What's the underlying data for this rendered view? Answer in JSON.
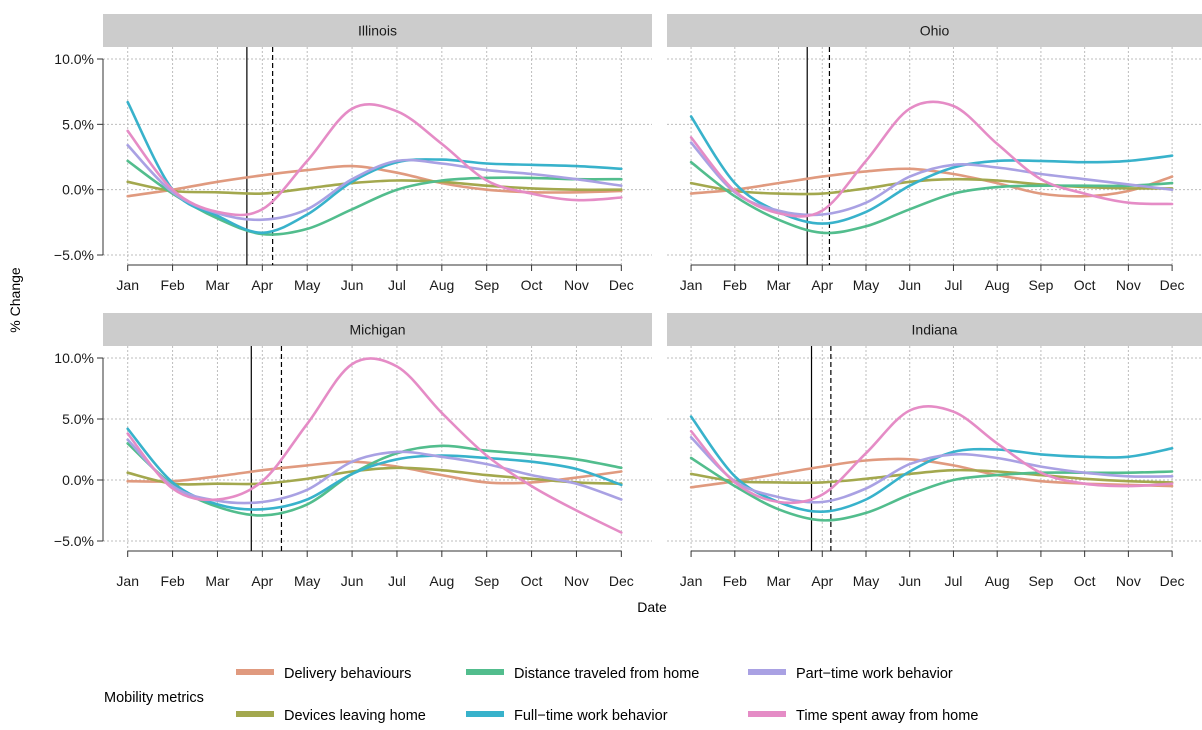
{
  "chart_data": {
    "type": "line",
    "xlabel": "Date",
    "ylabel": "% Change",
    "ylim": [
      -5,
      10
    ],
    "y_ticks": [
      -5,
      0,
      5,
      10
    ],
    "y_tick_labels": [
      "−5.0%",
      "0.0%",
      "5.0%",
      "10.0%"
    ],
    "month_labels": [
      "Jan",
      "Feb",
      "Mar",
      "Apr",
      "May",
      "Jun",
      "Jul",
      "Aug",
      "Sep",
      "Oct",
      "Nov",
      "Dec"
    ],
    "grid": true,
    "legend": {
      "title": "Mobility metrics",
      "position": "bottom",
      "entries": [
        {
          "name": "Delivery behaviours",
          "color": "#e09a7f"
        },
        {
          "name": "Devices leaving home",
          "color": "#a3a84e"
        },
        {
          "name": "Distance traveled from home",
          "color": "#52bd8d"
        },
        {
          "name": "Full−time work behavior",
          "color": "#38b2cb"
        },
        {
          "name": "Part−time work behavior",
          "color": "#a9a1e3"
        },
        {
          "name": "Time spent away from home",
          "color": "#e58cc6"
        }
      ]
    },
    "x": [
      "Jan",
      "Feb",
      "Mar",
      "Apr",
      "May",
      "Jun",
      "Jul",
      "Aug",
      "Sep",
      "Oct",
      "Nov",
      "Dec"
    ],
    "panels": [
      {
        "title": "Illinois",
        "solid_vline": "Mar 21",
        "dashed_vline": "Apr 8",
        "series": [
          {
            "name": "Delivery behaviours",
            "values": [
              -0.5,
              0.0,
              0.6,
              1.1,
              1.5,
              1.8,
              1.3,
              0.5,
              0.0,
              -0.2,
              -0.2,
              -0.1
            ]
          },
          {
            "name": "Devices leaving home",
            "values": [
              0.6,
              -0.1,
              -0.2,
              -0.3,
              0.1,
              0.5,
              0.7,
              0.6,
              0.3,
              0.1,
              0.0,
              0.0
            ]
          },
          {
            "name": "Distance traveled from home",
            "values": [
              2.2,
              -0.3,
              -2.2,
              -3.4,
              -3.0,
              -1.5,
              0.0,
              0.7,
              0.9,
              0.9,
              0.8,
              0.8
            ]
          },
          {
            "name": "Full−time work behavior",
            "values": [
              6.7,
              0.0,
              -2.0,
              -3.3,
              -1.9,
              0.6,
              2.1,
              2.3,
              2.0,
              1.9,
              1.8,
              1.6
            ]
          },
          {
            "name": "Part−time work behavior",
            "values": [
              3.4,
              -0.2,
              -1.8,
              -2.3,
              -1.5,
              0.8,
              2.2,
              2.0,
              1.5,
              1.2,
              0.8,
              0.3
            ]
          },
          {
            "name": "Time spent away from home",
            "values": [
              4.5,
              0.0,
              -1.7,
              -1.5,
              2.2,
              6.2,
              6.0,
              3.5,
              0.7,
              -0.3,
              -0.8,
              -0.6
            ]
          }
        ]
      },
      {
        "title": "Ohio",
        "solid_vline": "Mar 21",
        "dashed_vline": "Apr 6",
        "series": [
          {
            "name": "Delivery behaviours",
            "values": [
              -0.3,
              0.0,
              0.5,
              1.0,
              1.4,
              1.6,
              1.2,
              0.5,
              -0.3,
              -0.5,
              -0.1,
              1.0
            ]
          },
          {
            "name": "Devices leaving home",
            "values": [
              0.5,
              -0.1,
              -0.3,
              -0.3,
              0.1,
              0.6,
              0.8,
              0.7,
              0.4,
              0.2,
              0.1,
              0.1
            ]
          },
          {
            "name": "Distance traveled from home",
            "values": [
              2.1,
              -0.5,
              -2.3,
              -3.3,
              -2.8,
              -1.5,
              -0.3,
              0.2,
              0.3,
              0.3,
              0.3,
              0.5
            ]
          },
          {
            "name": "Full−time work behavior",
            "values": [
              5.6,
              0.5,
              -1.7,
              -2.6,
              -1.7,
              0.3,
              1.7,
              2.2,
              2.2,
              2.1,
              2.2,
              2.6
            ]
          },
          {
            "name": "Part−time work behavior",
            "values": [
              3.6,
              -0.2,
              -1.6,
              -1.9,
              -1.0,
              1.0,
              1.9,
              1.7,
              1.2,
              0.8,
              0.4,
              0.0
            ]
          },
          {
            "name": "Time spent away from home",
            "values": [
              4.0,
              -0.1,
              -1.8,
              -1.6,
              2.2,
              6.2,
              6.4,
              3.5,
              0.8,
              -0.3,
              -1.0,
              -1.1
            ]
          }
        ]
      },
      {
        "title": "Michigan",
        "solid_vline": "Mar 24",
        "dashed_vline": "Apr 14",
        "series": [
          {
            "name": "Delivery behaviours",
            "values": [
              -0.1,
              -0.1,
              0.3,
              0.8,
              1.2,
              1.5,
              1.1,
              0.4,
              -0.2,
              -0.2,
              0.2,
              0.7
            ]
          },
          {
            "name": "Devices leaving home",
            "values": [
              0.6,
              -0.3,
              -0.3,
              -0.3,
              0.1,
              0.7,
              1.0,
              0.8,
              0.4,
              0.1,
              -0.2,
              -0.3
            ]
          },
          {
            "name": "Distance traveled from home",
            "values": [
              3.0,
              -0.4,
              -2.2,
              -2.9,
              -2.0,
              0.5,
              2.2,
              2.8,
              2.4,
              2.1,
              1.7,
              1.0
            ]
          },
          {
            "name": "Full−time work behavior",
            "values": [
              4.2,
              -0.2,
              -2.0,
              -2.4,
              -1.6,
              0.5,
              1.7,
              2.0,
              1.8,
              1.5,
              0.9,
              -0.4
            ]
          },
          {
            "name": "Part−time work behavior",
            "values": [
              3.3,
              -0.5,
              -1.7,
              -1.8,
              -0.8,
              1.5,
              2.3,
              1.9,
              1.3,
              0.4,
              -0.3,
              -1.6
            ]
          },
          {
            "name": "Time spent away from home",
            "values": [
              3.8,
              -0.7,
              -1.6,
              -0.1,
              4.6,
              9.5,
              9.3,
              5.5,
              2.0,
              -0.5,
              -2.5,
              -4.3
            ]
          }
        ]
      },
      {
        "title": "Indiana",
        "solid_vline": "Mar 24",
        "dashed_vline": "Apr 7",
        "series": [
          {
            "name": "Delivery behaviours",
            "values": [
              -0.6,
              -0.1,
              0.5,
              1.1,
              1.6,
              1.7,
              1.2,
              0.4,
              -0.1,
              -0.3,
              -0.4,
              -0.5
            ]
          },
          {
            "name": "Devices leaving home",
            "values": [
              0.5,
              -0.1,
              -0.2,
              -0.2,
              0.1,
              0.5,
              0.8,
              0.7,
              0.4,
              0.1,
              -0.1,
              -0.2
            ]
          },
          {
            "name": "Distance traveled from home",
            "values": [
              1.8,
              -0.5,
              -2.4,
              -3.3,
              -2.7,
              -1.2,
              0.0,
              0.4,
              0.6,
              0.6,
              0.6,
              0.7
            ]
          },
          {
            "name": "Full−time work behavior",
            "values": [
              5.2,
              0.3,
              -1.8,
              -2.6,
              -1.6,
              0.7,
              2.3,
              2.5,
              2.1,
              1.9,
              1.9,
              2.6
            ]
          },
          {
            "name": "Part−time work behavior",
            "values": [
              3.5,
              -0.1,
              -1.4,
              -1.8,
              -0.7,
              1.3,
              2.1,
              1.8,
              1.1,
              0.6,
              0.3,
              0.3
            ]
          },
          {
            "name": "Time spent away from home",
            "values": [
              4.0,
              -0.2,
              -1.8,
              -1.2,
              2.2,
              5.7,
              5.6,
              3.0,
              0.6,
              -0.3,
              -0.5,
              -0.3
            ]
          }
        ]
      }
    ]
  }
}
